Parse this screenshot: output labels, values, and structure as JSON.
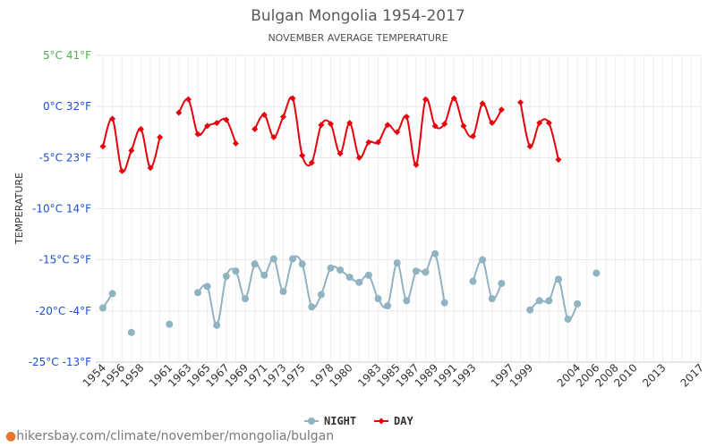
{
  "chart_data": {
    "type": "line",
    "title": "Bulgan Mongolia 1954-2017",
    "subtitle": "NOVEMBER AVERAGE TEMPERATURE",
    "ylabel": "TEMPERATURE",
    "ylim": [
      -25,
      5
    ],
    "xlim": [
      1954,
      2017
    ],
    "grid": true,
    "legend_position": "bottom-center",
    "y_ticks": [
      {
        "value": 5,
        "label": "5°C 41°F",
        "color": "#4caf50"
      },
      {
        "value": 0,
        "label": "0°C 32°F",
        "color": "#1d4fd8"
      },
      {
        "value": -5,
        "label": "-5°C 23°F",
        "color": "#1d4fd8"
      },
      {
        "value": -10,
        "label": "-10°C 14°F",
        "color": "#1d4fd8"
      },
      {
        "value": -15,
        "label": "-15°C 5°F",
        "color": "#1d4fd8"
      },
      {
        "value": -20,
        "label": "-20°C -4°F",
        "color": "#1d4fd8"
      },
      {
        "value": -25,
        "label": "-25°C -13°F",
        "color": "#1d4fd8"
      }
    ],
    "x_ticks": [
      1954,
      1956,
      1958,
      1961,
      1963,
      1965,
      1967,
      1969,
      1971,
      1973,
      1975,
      1978,
      1980,
      1983,
      1985,
      1987,
      1989,
      1991,
      1993,
      1997,
      1999,
      2004,
      2006,
      2008,
      2010,
      2013,
      2017
    ],
    "x": [
      1954,
      1955,
      1956,
      1957,
      1958,
      1959,
      1960,
      1961,
      1962,
      1963,
      1964,
      1965,
      1966,
      1967,
      1968,
      1969,
      1970,
      1971,
      1972,
      1973,
      1974,
      1975,
      1976,
      1977,
      1978,
      1979,
      1980,
      1981,
      1982,
      1983,
      1984,
      1985,
      1986,
      1987,
      1988,
      1989,
      1990,
      1991,
      1992,
      1993,
      1994,
      1995,
      1996,
      1997,
      1998,
      1999,
      2000,
      2001,
      2002,
      2003,
      2004,
      2005,
      2006,
      2007,
      2008,
      2009,
      2010,
      2011,
      2012,
      2013,
      2014,
      2015,
      2016,
      2017
    ],
    "series": [
      {
        "name": "NIGHT",
        "color": "#8fb3c0",
        "marker": "circle",
        "values": [
          -19.7,
          -18.3,
          null,
          -22.1,
          null,
          null,
          null,
          -21.3,
          null,
          null,
          -18.2,
          -17.6,
          -21.4,
          -16.6,
          -16.1,
          -18.8,
          -15.4,
          -16.5,
          -14.9,
          -18.1,
          -14.9,
          -15.4,
          -19.6,
          -18.4,
          -15.8,
          -16.0,
          -16.7,
          -17.2,
          -16.5,
          -18.8,
          -19.5,
          -15.3,
          -19.0,
          -16.1,
          -16.2,
          -14.4,
          -19.2,
          null,
          null,
          -17.1,
          -15.0,
          -18.8,
          -17.3,
          null,
          null,
          -19.9,
          -19.0,
          -19.0,
          -16.9,
          -20.8,
          -19.3,
          null,
          -16.3,
          null,
          null,
          null,
          null,
          null,
          null,
          null,
          null,
          null,
          null,
          null
        ]
      },
      {
        "name": "DAY",
        "color": "#e8000b",
        "marker": "diamond",
        "values": [
          -3.9,
          -1.2,
          -6.3,
          -4.3,
          -2.2,
          -6.0,
          -3.0,
          null,
          -0.6,
          0.7,
          -2.7,
          -1.9,
          -1.6,
          -1.3,
          -3.6,
          null,
          -2.2,
          -0.8,
          -3.0,
          -1.0,
          0.8,
          -4.8,
          -5.5,
          -1.8,
          -1.7,
          -4.6,
          -1.6,
          -5.0,
          -3.5,
          -3.5,
          -1.8,
          -2.5,
          -1.0,
          -5.7,
          0.7,
          -1.9,
          -1.7,
          0.8,
          -1.9,
          -2.9,
          0.3,
          -1.6,
          -0.3,
          null,
          0.4,
          -3.9,
          -1.6,
          -1.6,
          -5.2,
          null,
          null,
          null,
          null,
          null,
          null,
          null,
          null,
          null,
          null,
          null,
          null,
          null,
          null,
          null
        ]
      }
    ]
  },
  "watermark": "hikersbay.com/climate/november/mongolia/bulgan"
}
